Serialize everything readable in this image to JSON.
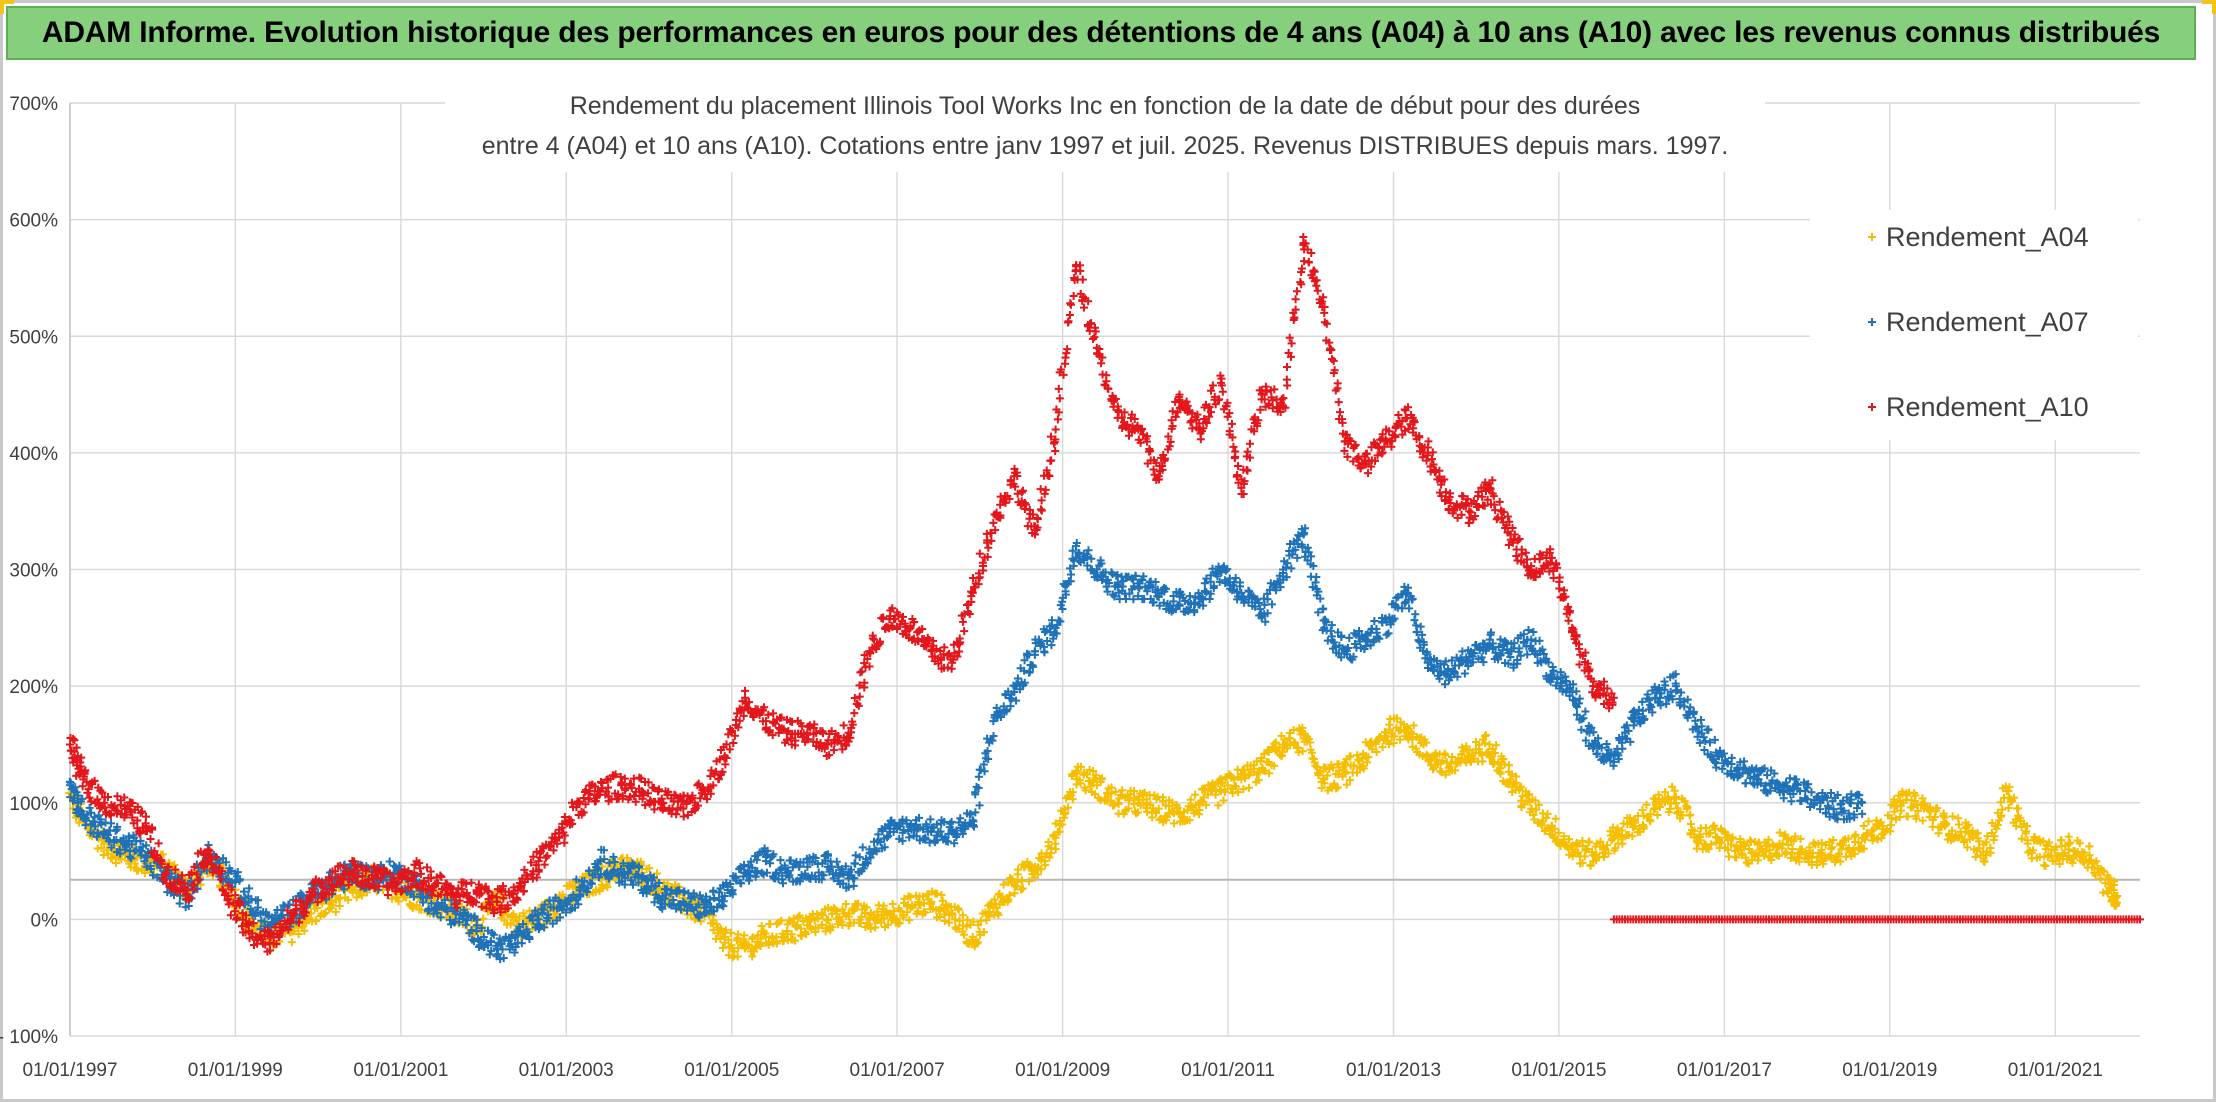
{
  "banner": {
    "title": "ADAM Informe. Evolution historique des performances en euros pour des détentions de 4 ans (A04) à 10 ans (A10) avec les revenus connus distribués"
  },
  "colors": {
    "banner_bg": "#86cf7c",
    "A04": "#f5be00",
    "A07": "#1f72b8",
    "A10": "#e3161b",
    "grid": "#d9d9d9",
    "reference_line": "#b7b7b7"
  },
  "chart_data": {
    "type": "scatter",
    "title_lines": [
      "Rendement du placement Illinois Tool Works Inc en fonction de la date de début pour des durées",
      "entre 4 (A04) et 10 ans (A10). Cotations entre janv 1997 et juil. 2025. Revenus DISTRIBUES depuis mars. 1997."
    ],
    "xlabel": "",
    "ylabel": "",
    "x_range": [
      "1997-01-01",
      "2022-01-10"
    ],
    "x_ticks": [
      "01/01/1997",
      "01/01/1999",
      "01/01/2001",
      "01/01/2003",
      "01/01/2005",
      "01/01/2007",
      "01/01/2009",
      "01/01/2011",
      "01/01/2013",
      "01/01/2015",
      "01/01/2017",
      "01/01/2019",
      "01/01/2021"
    ],
    "y_range": [
      -100,
      700
    ],
    "y_ticks": [
      {
        "value": -100,
        "label": "- 100%"
      },
      {
        "value": 0,
        "label": "0%"
      },
      {
        "value": 100,
        "label": "100%"
      },
      {
        "value": 200,
        "label": "200%"
      },
      {
        "value": 300,
        "label": "300%"
      },
      {
        "value": 400,
        "label": "400%"
      },
      {
        "value": 500,
        "label": "500%"
      },
      {
        "value": 600,
        "label": "600%"
      },
      {
        "value": 700,
        "label": "700%"
      }
    ],
    "reference_line_y": 34,
    "grid": true,
    "legend_position": "top-right",
    "marker": "+",
    "series": [
      {
        "name": "Rendement_A04",
        "color": "#f5be00",
        "points": [
          [
            "1997-01-01",
            105
          ],
          [
            "1997-03-01",
            85
          ],
          [
            "1997-06-01",
            65
          ],
          [
            "1997-09-01",
            55
          ],
          [
            "1997-12-01",
            48
          ],
          [
            "1998-03-01",
            45
          ],
          [
            "1998-06-01",
            25
          ],
          [
            "1998-09-01",
            50
          ],
          [
            "1998-12-01",
            30
          ],
          [
            "1999-03-01",
            0
          ],
          [
            "1999-06-01",
            -15
          ],
          [
            "1999-09-01",
            -10
          ],
          [
            "1999-12-01",
            5
          ],
          [
            "2000-03-01",
            15
          ],
          [
            "2000-06-01",
            25
          ],
          [
            "2000-09-01",
            35
          ],
          [
            "2000-12-01",
            28
          ],
          [
            "2001-03-01",
            20
          ],
          [
            "2001-06-01",
            15
          ],
          [
            "2001-09-01",
            5
          ],
          [
            "2001-12-01",
            -5
          ],
          [
            "2002-03-01",
            15
          ],
          [
            "2002-06-01",
            -5
          ],
          [
            "2002-09-01",
            0
          ],
          [
            "2002-12-01",
            15
          ],
          [
            "2003-03-01",
            25
          ],
          [
            "2003-06-01",
            35
          ],
          [
            "2003-09-01",
            45
          ],
          [
            "2003-12-01",
            40
          ],
          [
            "2004-03-01",
            25
          ],
          [
            "2004-06-01",
            15
          ],
          [
            "2004-09-01",
            5
          ],
          [
            "2004-12-01",
            -20
          ],
          [
            "2005-03-01",
            -25
          ],
          [
            "2005-06-01",
            -15
          ],
          [
            "2005-09-01",
            -10
          ],
          [
            "2005-12-01",
            -5
          ],
          [
            "2006-03-01",
            0
          ],
          [
            "2006-06-01",
            5
          ],
          [
            "2006-09-01",
            0
          ],
          [
            "2006-12-01",
            5
          ],
          [
            "2007-03-01",
            10
          ],
          [
            "2007-06-01",
            15
          ],
          [
            "2007-09-01",
            5
          ],
          [
            "2007-12-01",
            -15
          ],
          [
            "2008-03-01",
            10
          ],
          [
            "2008-06-01",
            30
          ],
          [
            "2008-09-01",
            45
          ],
          [
            "2008-12-01",
            70
          ],
          [
            "2009-03-01",
            125
          ],
          [
            "2009-06-01",
            115
          ],
          [
            "2009-09-01",
            100
          ],
          [
            "2009-12-01",
            100
          ],
          [
            "2010-03-01",
            95
          ],
          [
            "2010-06-01",
            90
          ],
          [
            "2010-09-01",
            100
          ],
          [
            "2010-12-01",
            110
          ],
          [
            "2011-03-01",
            120
          ],
          [
            "2011-06-01",
            130
          ],
          [
            "2011-09-01",
            150
          ],
          [
            "2011-12-01",
            155
          ],
          [
            "2012-03-01",
            120
          ],
          [
            "2012-06-01",
            125
          ],
          [
            "2012-09-01",
            140
          ],
          [
            "2012-12-01",
            160
          ],
          [
            "2013-03-01",
            165
          ],
          [
            "2013-06-01",
            140
          ],
          [
            "2013-09-01",
            130
          ],
          [
            "2013-12-01",
            140
          ],
          [
            "2014-03-01",
            150
          ],
          [
            "2014-06-01",
            120
          ],
          [
            "2014-09-01",
            95
          ],
          [
            "2014-12-01",
            80
          ],
          [
            "2015-03-01",
            60
          ],
          [
            "2015-06-01",
            55
          ],
          [
            "2015-09-01",
            70
          ],
          [
            "2015-12-01",
            80
          ],
          [
            "2016-03-01",
            95
          ],
          [
            "2016-06-01",
            105
          ],
          [
            "2016-09-01",
            70
          ],
          [
            "2016-12-01",
            70
          ],
          [
            "2017-03-01",
            60
          ],
          [
            "2017-06-01",
            55
          ],
          [
            "2017-09-01",
            65
          ],
          [
            "2017-12-01",
            60
          ],
          [
            "2018-03-01",
            55
          ],
          [
            "2018-06-01",
            60
          ],
          [
            "2018-09-01",
            70
          ],
          [
            "2018-12-01",
            80
          ],
          [
            "2019-03-01",
            100
          ],
          [
            "2019-06-01",
            95
          ],
          [
            "2019-09-01",
            80
          ],
          [
            "2019-12-01",
            75
          ],
          [
            "2020-03-01",
            55
          ],
          [
            "2020-06-01",
            110
          ],
          [
            "2020-09-01",
            65
          ],
          [
            "2020-12-01",
            55
          ],
          [
            "2021-03-01",
            60
          ],
          [
            "2021-06-01",
            55
          ],
          [
            "2021-09-01",
            25
          ],
          [
            "2021-10-01",
            20
          ]
        ]
      },
      {
        "name": "Rendement_A07",
        "color": "#1f72b8",
        "points": [
          [
            "1997-01-01",
            115
          ],
          [
            "1997-03-01",
            90
          ],
          [
            "1997-06-01",
            75
          ],
          [
            "1997-09-01",
            65
          ],
          [
            "1997-12-01",
            55
          ],
          [
            "1998-03-01",
            35
          ],
          [
            "1998-06-01",
            20
          ],
          [
            "1998-09-01",
            55
          ],
          [
            "1998-12-01",
            40
          ],
          [
            "1999-03-01",
            15
          ],
          [
            "1999-06-01",
            -5
          ],
          [
            "1999-09-01",
            5
          ],
          [
            "1999-12-01",
            20
          ],
          [
            "2000-03-01",
            30
          ],
          [
            "2000-06-01",
            40
          ],
          [
            "2000-09-01",
            35
          ],
          [
            "2000-12-01",
            40
          ],
          [
            "2001-03-01",
            30
          ],
          [
            "2001-06-01",
            10
          ],
          [
            "2001-09-01",
            5
          ],
          [
            "2001-12-01",
            -10
          ],
          [
            "2002-03-01",
            -25
          ],
          [
            "2002-06-01",
            -20
          ],
          [
            "2002-09-01",
            0
          ],
          [
            "2002-12-01",
            10
          ],
          [
            "2003-03-01",
            25
          ],
          [
            "2003-06-01",
            50
          ],
          [
            "2003-09-01",
            40
          ],
          [
            "2003-12-01",
            35
          ],
          [
            "2004-03-01",
            20
          ],
          [
            "2004-06-01",
            15
          ],
          [
            "2004-09-01",
            10
          ],
          [
            "2004-12-01",
            20
          ],
          [
            "2005-03-01",
            40
          ],
          [
            "2005-06-01",
            50
          ],
          [
            "2005-09-01",
            40
          ],
          [
            "2005-12-01",
            45
          ],
          [
            "2006-03-01",
            45
          ],
          [
            "2006-06-01",
            35
          ],
          [
            "2006-09-01",
            60
          ],
          [
            "2006-12-01",
            75
          ],
          [
            "2007-03-01",
            80
          ],
          [
            "2007-06-01",
            75
          ],
          [
            "2007-09-01",
            75
          ],
          [
            "2007-12-01",
            85
          ],
          [
            "2008-03-01",
            170
          ],
          [
            "2008-06-01",
            195
          ],
          [
            "2008-09-01",
            230
          ],
          [
            "2008-12-01",
            250
          ],
          [
            "2009-03-01",
            320
          ],
          [
            "2009-06-01",
            300
          ],
          [
            "2009-09-01",
            285
          ],
          [
            "2009-12-01",
            285
          ],
          [
            "2010-03-01",
            280
          ],
          [
            "2010-06-01",
            270
          ],
          [
            "2010-09-01",
            275
          ],
          [
            "2010-12-01",
            300
          ],
          [
            "2011-03-01",
            280
          ],
          [
            "2011-06-01",
            260
          ],
          [
            "2011-09-01",
            300
          ],
          [
            "2011-12-01",
            330
          ],
          [
            "2012-03-01",
            250
          ],
          [
            "2012-06-01",
            230
          ],
          [
            "2012-09-01",
            240
          ],
          [
            "2012-12-01",
            255
          ],
          [
            "2013-03-01",
            280
          ],
          [
            "2013-06-01",
            220
          ],
          [
            "2013-09-01",
            210
          ],
          [
            "2013-12-01",
            225
          ],
          [
            "2014-03-01",
            235
          ],
          [
            "2014-06-01",
            225
          ],
          [
            "2014-09-01",
            240
          ],
          [
            "2014-12-01",
            210
          ],
          [
            "2015-03-01",
            195
          ],
          [
            "2015-06-01",
            150
          ],
          [
            "2015-09-01",
            135
          ],
          [
            "2015-12-01",
            170
          ],
          [
            "2016-03-01",
            190
          ],
          [
            "2016-06-01",
            200
          ],
          [
            "2016-09-01",
            165
          ],
          [
            "2016-12-01",
            140
          ],
          [
            "2017-03-01",
            130
          ],
          [
            "2017-06-01",
            120
          ],
          [
            "2017-09-01",
            115
          ],
          [
            "2017-12-01",
            110
          ],
          [
            "2018-03-01",
            100
          ],
          [
            "2018-06-01",
            95
          ],
          [
            "2018-09-01",
            100
          ]
        ]
      },
      {
        "name": "Rendement_A10",
        "color": "#e3161b",
        "points": [
          [
            "1997-01-01",
            150
          ],
          [
            "1997-03-01",
            120
          ],
          [
            "1997-06-01",
            100
          ],
          [
            "1997-09-01",
            95
          ],
          [
            "1997-12-01",
            80
          ],
          [
            "1998-03-01",
            40
          ],
          [
            "1998-06-01",
            25
          ],
          [
            "1998-09-01",
            60
          ],
          [
            "1998-12-01",
            20
          ],
          [
            "1999-03-01",
            -10
          ],
          [
            "1999-06-01",
            -20
          ],
          [
            "1999-09-01",
            0
          ],
          [
            "1999-12-01",
            20
          ],
          [
            "2000-03-01",
            35
          ],
          [
            "2000-06-01",
            40
          ],
          [
            "2000-09-01",
            35
          ],
          [
            "2000-12-01",
            30
          ],
          [
            "2001-03-01",
            40
          ],
          [
            "2001-06-01",
            30
          ],
          [
            "2001-09-01",
            20
          ],
          [
            "2001-12-01",
            25
          ],
          [
            "2002-03-01",
            15
          ],
          [
            "2002-06-01",
            25
          ],
          [
            "2002-09-01",
            50
          ],
          [
            "2002-12-01",
            70
          ],
          [
            "2003-03-01",
            100
          ],
          [
            "2003-06-01",
            110
          ],
          [
            "2003-09-01",
            115
          ],
          [
            "2003-12-01",
            110
          ],
          [
            "2004-03-01",
            100
          ],
          [
            "2004-06-01",
            95
          ],
          [
            "2004-09-01",
            110
          ],
          [
            "2004-12-01",
            140
          ],
          [
            "2005-03-01",
            190
          ],
          [
            "2005-06-01",
            170
          ],
          [
            "2005-09-01",
            160
          ],
          [
            "2005-12-01",
            160
          ],
          [
            "2006-03-01",
            150
          ],
          [
            "2006-06-01",
            160
          ],
          [
            "2006-09-01",
            230
          ],
          [
            "2006-12-01",
            260
          ],
          [
            "2007-03-01",
            250
          ],
          [
            "2007-06-01",
            230
          ],
          [
            "2007-09-01",
            220
          ],
          [
            "2007-12-01",
            280
          ],
          [
            "2008-03-01",
            340
          ],
          [
            "2008-06-01",
            380
          ],
          [
            "2008-09-01",
            330
          ],
          [
            "2008-12-01",
            420
          ],
          [
            "2009-03-01",
            560
          ],
          [
            "2009-06-01",
            490
          ],
          [
            "2009-09-01",
            430
          ],
          [
            "2009-12-01",
            420
          ],
          [
            "2010-03-01",
            380
          ],
          [
            "2010-06-01",
            450
          ],
          [
            "2010-09-01",
            420
          ],
          [
            "2010-12-01",
            460
          ],
          [
            "2011-03-01",
            370
          ],
          [
            "2011-06-01",
            450
          ],
          [
            "2011-09-01",
            440
          ],
          [
            "2011-12-01",
            580
          ],
          [
            "2012-03-01",
            520
          ],
          [
            "2012-06-01",
            410
          ],
          [
            "2012-09-01",
            390
          ],
          [
            "2012-12-01",
            410
          ],
          [
            "2013-03-01",
            430
          ],
          [
            "2013-06-01",
            400
          ],
          [
            "2013-09-01",
            360
          ],
          [
            "2013-12-01",
            350
          ],
          [
            "2014-03-01",
            370
          ],
          [
            "2014-06-01",
            330
          ],
          [
            "2014-09-01",
            300
          ],
          [
            "2014-12-01",
            310
          ],
          [
            "2015-03-01",
            250
          ],
          [
            "2015-06-01",
            200
          ],
          [
            "2015-09-01",
            190
          ]
        ],
        "flat_zero_range": [
          "2015-09-01",
          "2022-01-10"
        ]
      }
    ]
  }
}
